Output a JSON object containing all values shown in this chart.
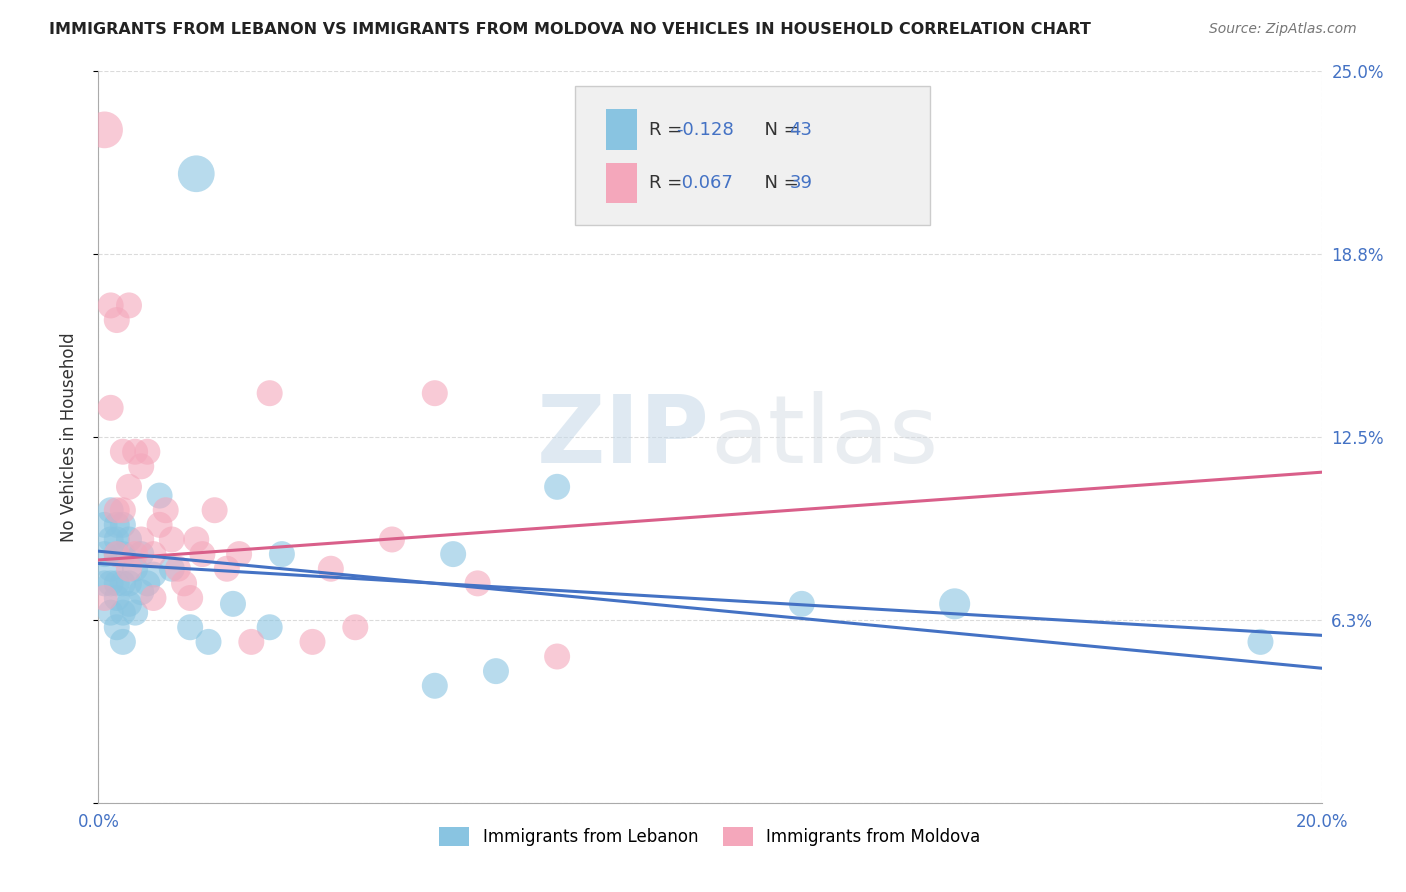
{
  "title": "IMMIGRANTS FROM LEBANON VS IMMIGRANTS FROM MOLDOVA NO VEHICLES IN HOUSEHOLD CORRELATION CHART",
  "source": "Source: ZipAtlas.com",
  "ylabel": "No Vehicles in Household",
  "xlim": [
    0.0,
    0.2
  ],
  "ylim": [
    0.0,
    0.25
  ],
  "legend_labels": [
    "Immigrants from Lebanon",
    "Immigrants from Moldova"
  ],
  "r_lebanon": -0.128,
  "n_lebanon": 43,
  "r_moldova": 0.067,
  "n_moldova": 39,
  "background_color": "#ffffff",
  "grid_color": "#cccccc",
  "blue_color": "#89c4e1",
  "pink_color": "#f4a7bb",
  "blue_line_color": "#4472c4",
  "pink_line_color": "#d95f8a",
  "watermark_zip": "ZIP",
  "watermark_atlas": "atlas",
  "lebanon_x": [
    0.001,
    0.001,
    0.001,
    0.002,
    0.002,
    0.002,
    0.002,
    0.002,
    0.003,
    0.003,
    0.003,
    0.003,
    0.003,
    0.003,
    0.004,
    0.004,
    0.004,
    0.004,
    0.004,
    0.005,
    0.005,
    0.005,
    0.006,
    0.006,
    0.007,
    0.007,
    0.008,
    0.009,
    0.01,
    0.012,
    0.015,
    0.016,
    0.018,
    0.022,
    0.028,
    0.03,
    0.055,
    0.058,
    0.065,
    0.075,
    0.115,
    0.14,
    0.19
  ],
  "lebanon_y": [
    0.075,
    0.085,
    0.095,
    0.065,
    0.075,
    0.08,
    0.09,
    0.1,
    0.06,
    0.07,
    0.075,
    0.085,
    0.09,
    0.095,
    0.055,
    0.065,
    0.075,
    0.085,
    0.095,
    0.068,
    0.075,
    0.09,
    0.065,
    0.08,
    0.072,
    0.085,
    0.075,
    0.078,
    0.105,
    0.08,
    0.06,
    0.215,
    0.055,
    0.068,
    0.06,
    0.085,
    0.04,
    0.085,
    0.045,
    0.108,
    0.068,
    0.068,
    0.055
  ],
  "moldova_x": [
    0.001,
    0.001,
    0.002,
    0.002,
    0.003,
    0.003,
    0.003,
    0.004,
    0.004,
    0.005,
    0.005,
    0.005,
    0.006,
    0.006,
    0.007,
    0.007,
    0.008,
    0.009,
    0.009,
    0.01,
    0.011,
    0.012,
    0.013,
    0.014,
    0.015,
    0.016,
    0.017,
    0.019,
    0.021,
    0.023,
    0.025,
    0.028,
    0.035,
    0.038,
    0.042,
    0.048,
    0.055,
    0.062,
    0.075
  ],
  "moldova_y": [
    0.23,
    0.07,
    0.17,
    0.135,
    0.085,
    0.1,
    0.165,
    0.1,
    0.12,
    0.08,
    0.108,
    0.17,
    0.085,
    0.12,
    0.09,
    0.115,
    0.12,
    0.07,
    0.085,
    0.095,
    0.1,
    0.09,
    0.08,
    0.075,
    0.07,
    0.09,
    0.085,
    0.1,
    0.08,
    0.085,
    0.055,
    0.14,
    0.055,
    0.08,
    0.06,
    0.09,
    0.14,
    0.075,
    0.05
  ],
  "lebanon_sizes": [
    350,
    350,
    350,
    350,
    350,
    350,
    350,
    350,
    350,
    350,
    350,
    350,
    350,
    350,
    350,
    350,
    350,
    350,
    350,
    350,
    350,
    350,
    350,
    350,
    350,
    350,
    350,
    350,
    350,
    350,
    350,
    700,
    350,
    350,
    350,
    350,
    350,
    350,
    350,
    350,
    350,
    500,
    350
  ],
  "moldova_sizes": [
    700,
    350,
    350,
    350,
    350,
    350,
    350,
    350,
    350,
    350,
    350,
    350,
    350,
    350,
    350,
    350,
    350,
    350,
    350,
    350,
    350,
    350,
    350,
    350,
    350,
    350,
    350,
    350,
    350,
    350,
    350,
    350,
    350,
    350,
    350,
    350,
    350,
    350,
    350
  ]
}
